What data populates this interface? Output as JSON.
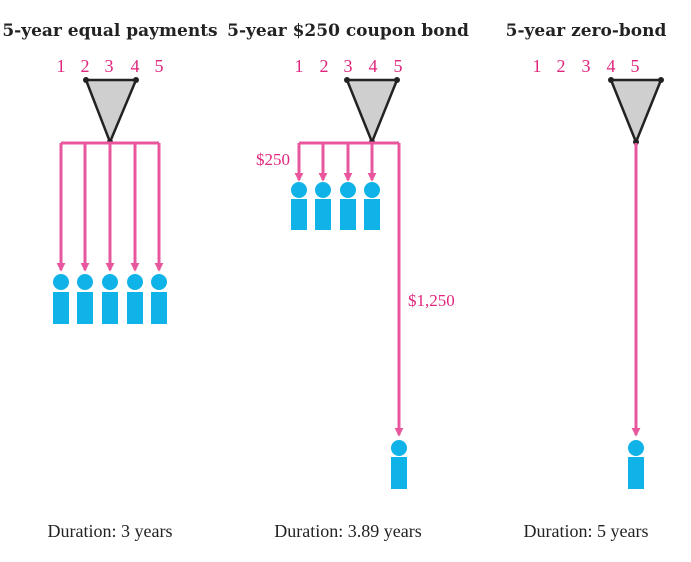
{
  "panels": [
    {
      "title": "5-year equal payments",
      "numbers": [
        "1",
        "2",
        "3",
        "4",
        "5"
      ],
      "duration": "Duration: 3 years"
    },
    {
      "title": "5-year $250 coupon bond",
      "numbers": [
        "1",
        "2",
        "3",
        "4",
        "5"
      ],
      "coupon_label": "$250",
      "final_label": "$1,250",
      "duration": "Duration: 3.89 years"
    },
    {
      "title": "5-year zero-bond",
      "numbers": [
        "1",
        "2",
        "3",
        "4",
        "5"
      ],
      "duration": "Duration: 5 years"
    }
  ],
  "colors": {
    "arrow": "#e8579e",
    "person": "#0fb3e8",
    "triangle": "#cfcfcf",
    "outline": "#222222"
  }
}
